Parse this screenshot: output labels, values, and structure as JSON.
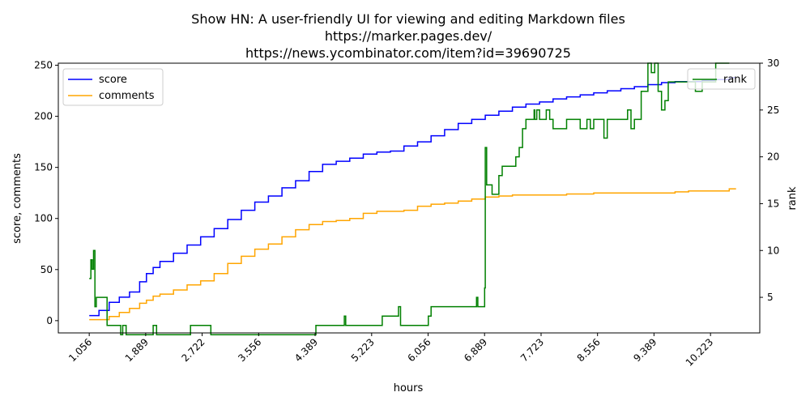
{
  "chart_data": {
    "type": "line",
    "title": [
      "Show HN: A user-friendly UI for viewing and editing Markdown files",
      "https://marker.pages.dev/",
      "https://news.ycombinator.com/item?id=39690725"
    ],
    "xlabel": "hours",
    "ylabel_left": "score, comments",
    "ylabel_right": "rank",
    "xlim": [
      0.6,
      10.95
    ],
    "ylim_left": [
      -12,
      252
    ],
    "ylim_right": [
      1.2,
      30
    ],
    "x_ticks": [
      1.056,
      1.889,
      2.722,
      3.556,
      4.389,
      5.223,
      6.056,
      6.889,
      7.723,
      8.556,
      9.389,
      10.223
    ],
    "x_tick_labels": [
      "1.056",
      "1.889",
      "2.722",
      "3.556",
      "4.389",
      "5.223",
      "6.056",
      "6.889",
      "7.723",
      "8.556",
      "9.389",
      "10.223"
    ],
    "y_left_ticks": [
      0,
      50,
      100,
      150,
      200,
      250
    ],
    "y_left_tick_labels": [
      "0",
      "50",
      "100",
      "150",
      "200",
      "250"
    ],
    "y_right_ticks": [
      5,
      10,
      15,
      20,
      25,
      30
    ],
    "y_right_tick_labels": [
      "5",
      "10",
      "15",
      "20",
      "25",
      "30"
    ],
    "legend_left": {
      "placement": "upper-left",
      "entries": [
        "score",
        "comments"
      ]
    },
    "legend_right": {
      "placement": "upper-right",
      "entries": [
        "rank"
      ]
    },
    "grid": false,
    "series": [
      {
        "name": "score",
        "axis": "left",
        "color": "#0000ff",
        "x": [
          1.056,
          1.2,
          1.35,
          1.5,
          1.65,
          1.8,
          1.9,
          2.0,
          2.1,
          2.3,
          2.5,
          2.7,
          2.9,
          3.1,
          3.3,
          3.5,
          3.7,
          3.9,
          4.1,
          4.3,
          4.5,
          4.7,
          4.9,
          5.1,
          5.3,
          5.5,
          5.7,
          5.9,
          6.1,
          6.3,
          6.5,
          6.7,
          6.9,
          7.1,
          7.3,
          7.5,
          7.7,
          7.9,
          8.1,
          8.3,
          8.5,
          8.7,
          8.9,
          9.1,
          9.3,
          9.5,
          9.7,
          9.9,
          10.1,
          10.3,
          10.5,
          10.6
        ],
        "values": [
          5,
          10,
          18,
          23,
          28,
          38,
          46,
          52,
          58,
          66,
          74,
          82,
          90,
          99,
          108,
          116,
          122,
          130,
          137,
          146,
          153,
          156,
          159,
          163,
          165,
          166,
          171,
          175,
          181,
          187,
          193,
          197,
          201,
          205,
          209,
          212,
          214,
          217,
          219,
          221,
          223,
          225,
          227,
          229,
          231,
          233,
          234,
          234,
          235,
          236,
          238,
          238
        ]
      },
      {
        "name": "comments",
        "axis": "left",
        "color": "#ffa500",
        "x": [
          1.056,
          1.2,
          1.35,
          1.5,
          1.65,
          1.8,
          1.9,
          2.0,
          2.1,
          2.3,
          2.5,
          2.7,
          2.9,
          3.1,
          3.3,
          3.5,
          3.7,
          3.9,
          4.1,
          4.3,
          4.5,
          4.7,
          4.9,
          5.1,
          5.3,
          5.5,
          5.7,
          5.9,
          6.1,
          6.3,
          6.5,
          6.7,
          6.9,
          7.1,
          7.3,
          7.5,
          7.7,
          7.9,
          8.1,
          8.3,
          8.5,
          8.7,
          8.9,
          9.1,
          9.3,
          9.5,
          9.7,
          9.9,
          10.1,
          10.3,
          10.5,
          10.6
        ],
        "values": [
          1,
          1,
          4,
          8,
          12,
          17,
          20,
          24,
          26,
          30,
          35,
          39,
          46,
          56,
          63,
          70,
          75,
          82,
          89,
          94,
          97,
          98,
          100,
          105,
          107,
          107,
          108,
          112,
          114,
          115,
          117,
          119,
          121,
          122,
          123,
          123,
          123,
          123,
          124,
          124,
          125,
          125,
          125,
          125,
          125,
          125,
          126,
          127,
          127,
          127,
          129,
          129
        ]
      },
      {
        "name": "rank",
        "axis": "right",
        "color": "#008000",
        "x": [
          1.056,
          1.08,
          1.1,
          1.12,
          1.14,
          1.16,
          1.3,
          1.32,
          1.5,
          1.52,
          1.55,
          1.6,
          1.65,
          1.7,
          1.9,
          2.0,
          2.05,
          2.1,
          2.2,
          2.5,
          2.55,
          2.8,
          2.85,
          3.5,
          4.0,
          4.35,
          4.4,
          4.5,
          4.8,
          4.82,
          4.84,
          5.0,
          5.2,
          5.35,
          5.38,
          5.5,
          5.6,
          5.62,
          5.65,
          6.0,
          6.06,
          6.1,
          6.14,
          6.5,
          6.75,
          6.77,
          6.79,
          6.88,
          6.89,
          6.9,
          6.92,
          6.94,
          7.0,
          7.1,
          7.15,
          7.3,
          7.35,
          7.4,
          7.45,
          7.5,
          7.55,
          7.62,
          7.63,
          7.66,
          7.7,
          7.8,
          7.85,
          7.9,
          8.05,
          8.1,
          8.2,
          8.3,
          8.4,
          8.45,
          8.5,
          8.6,
          8.65,
          8.7,
          9.0,
          9.05,
          9.1,
          9.2,
          9.3,
          9.35,
          9.4,
          9.45,
          9.5,
          9.55,
          9.6,
          9.8,
          10.0,
          10.1,
          10.15,
          10.3,
          10.5
        ],
        "values": [
          7,
          9,
          8,
          10,
          4,
          5,
          5,
          2,
          2,
          1,
          2,
          1,
          1,
          1,
          1,
          2,
          1,
          1,
          1,
          1,
          2,
          2,
          1,
          1,
          1,
          1,
          2,
          2,
          2,
          3,
          2,
          2,
          2,
          2,
          3,
          3,
          3,
          4,
          2,
          2,
          3,
          4,
          4,
          4,
          4,
          5,
          4,
          4,
          6,
          21,
          17,
          17,
          16,
          18,
          19,
          19,
          20,
          21,
          23,
          24,
          24,
          25,
          24,
          25,
          24,
          25,
          24,
          23,
          23,
          24,
          24,
          23,
          24,
          23,
          24,
          24,
          22,
          24,
          25,
          23,
          24,
          27,
          30,
          29,
          30,
          27,
          25,
          26,
          28,
          28,
          27,
          28,
          28,
          30,
          30
        ]
      }
    ]
  }
}
